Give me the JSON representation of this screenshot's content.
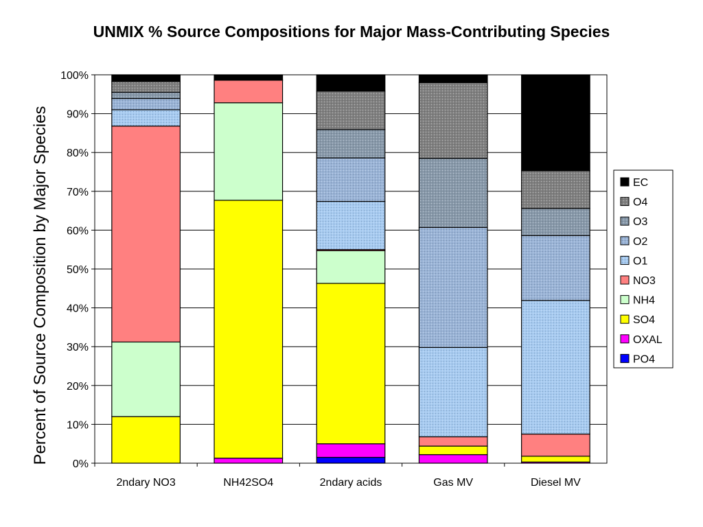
{
  "chart_data": {
    "type": "bar",
    "stacked": true,
    "title": "UNMIX % Source Compositions for Major Mass-Contributing Species",
    "xlabel": "",
    "ylabel": "Percent of Source Composition by Major Species",
    "ylim": [
      0,
      100
    ],
    "yticks": [
      "0%",
      "10%",
      "20%",
      "30%",
      "40%",
      "50%",
      "60%",
      "70%",
      "80%",
      "90%",
      "100%"
    ],
    "grid": true,
    "legend_position": "right",
    "categories": [
      "2ndary NO3",
      "NH42SO4",
      "2ndary acids",
      "Gas MV",
      "Diesel MV"
    ],
    "series": [
      {
        "name": "PO4",
        "color": "#0000ff",
        "pattern": "solid",
        "values": [
          0.0,
          0.0,
          1.5,
          0.0,
          0.0
        ]
      },
      {
        "name": "OXAL",
        "color": "#ff00ff",
        "pattern": "solid",
        "values": [
          0.0,
          1.3,
          3.5,
          2.2,
          0.3
        ]
      },
      {
        "name": "SO4",
        "color": "#ffff00",
        "pattern": "solid",
        "values": [
          12.0,
          66.4,
          41.3,
          2.2,
          1.5
        ]
      },
      {
        "name": "NH4",
        "color": "#ccffcc",
        "pattern": "solid",
        "values": [
          19.2,
          25.1,
          8.4,
          0.0,
          0.0
        ]
      },
      {
        "name": "NO3",
        "color": "#ff8080",
        "pattern": "solid",
        "values": [
          55.6,
          5.8,
          0.3,
          2.4,
          5.7
        ]
      },
      {
        "name": "O1",
        "color": "#a6caf0",
        "pattern": "dots",
        "values": [
          4.2,
          0.0,
          12.4,
          23.0,
          34.4
        ]
      },
      {
        "name": "O2",
        "color": "#99b3d6",
        "pattern": "dots",
        "values": [
          2.9,
          0.0,
          11.2,
          30.9,
          16.7
        ]
      },
      {
        "name": "O3",
        "color": "#8899aa",
        "pattern": "dots",
        "values": [
          1.6,
          0.0,
          7.3,
          17.8,
          7.0
        ]
      },
      {
        "name": "O4",
        "color": "#808080",
        "pattern": "dots",
        "values": [
          2.8,
          0.1,
          9.9,
          19.5,
          9.7
        ]
      },
      {
        "name": "EC",
        "color": "#000000",
        "pattern": "solid",
        "values": [
          1.7,
          1.3,
          4.2,
          2.0,
          24.7
        ]
      }
    ],
    "legend_order": [
      "EC",
      "O4",
      "O3",
      "O2",
      "O1",
      "NO3",
      "NH4",
      "SO4",
      "OXAL",
      "PO4"
    ]
  }
}
